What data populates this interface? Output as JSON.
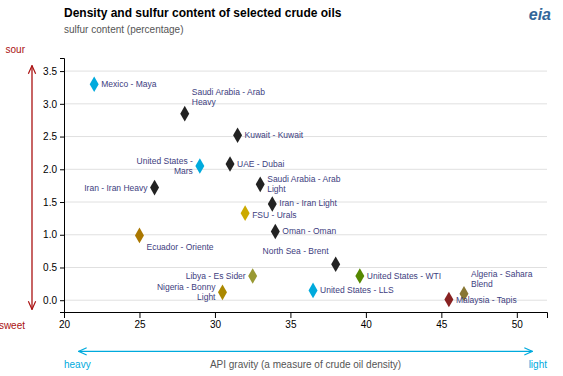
{
  "chart_data": {
    "type": "scatter",
    "title": "Density and sulfur content of selected crude oils",
    "subtitle": "sulfur content (percentage)",
    "xlabel": "API gravity (a measure of crude oil density)",
    "annotations": [
      "sour",
      "sweet",
      "heavy",
      "light",
      "eia"
    ],
    "labels": [
      "Mexico - Maya",
      "Saudi Arabia - Arab\nHeavy",
      "Kuwait - Kuwait",
      "United States -\nMars",
      "UAE - Dubai",
      "Saudi Arabia - Arab\nLight",
      "Iran - Iran Heavy",
      "Iran - Iran Light",
      "FSU - Urals",
      "Oman - Oman",
      "Ecuador - Oriente",
      "North Sea - Brent",
      "Libya - Es Sider",
      "United States - WTI",
      "Nigeria - Bonny\nLight",
      "United States - LLS",
      "Algeria - Sahara\nBlend",
      "Malaysia - Tapis"
    ],
    "x": [
      22.0,
      28.0,
      31.5,
      29.0,
      31.0,
      33.0,
      26.0,
      33.8,
      32.0,
      34.0,
      25.0,
      38.0,
      32.5,
      39.6,
      30.5,
      36.5,
      46.5,
      45.5
    ],
    "values": [
      3.3,
      2.85,
      2.52,
      2.05,
      2.08,
      1.77,
      1.72,
      1.47,
      1.33,
      1.05,
      0.99,
      0.55,
      0.37,
      0.37,
      0.12,
      0.15,
      0.1,
      0.01
    ],
    "colors": [
      "#00AADD",
      "#222222",
      "#222222",
      "#00AADD",
      "#222222",
      "#222222",
      "#222222",
      "#222222",
      "#CCAA00",
      "#222222",
      "#AA7700",
      "#222222",
      "#999933",
      "#558800",
      "#AA8800",
      "#00AADD",
      "#887733",
      "#882222"
    ],
    "marker": "diamond",
    "xlim": [
      20,
      52
    ],
    "ylim": [
      -0.18,
      3.7
    ],
    "xticks": [
      20,
      25,
      30,
      35,
      40,
      45,
      50
    ],
    "yticks": [
      {
        "value": 0.0,
        "label": "0.0"
      },
      0.5,
      {
        "value": 1.0,
        "label": "1.0"
      },
      1.5,
      {
        "value": 2.0,
        "label": "2.0"
      },
      2.5,
      {
        "value": 3.0,
        "label": "3.0"
      },
      3.5
    ],
    "grid": true
  }
}
